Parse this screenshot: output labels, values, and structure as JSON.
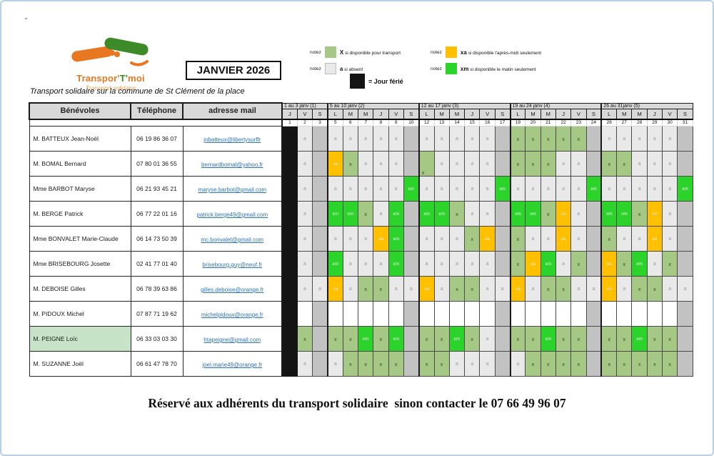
{
  "page": {
    "stray_mark": "„",
    "footer": "Réservé aux adhérents du transport solidaire  sinon contacter le 07 66 49 96 07"
  },
  "logo": {
    "title_part1": "Transpor'",
    "title_part2": "T'",
    "title_part3": "moi",
    "subtitle": "Transport solidaire"
  },
  "header": {
    "month_title": "JANVIER 2026",
    "caption": "Transport solidaire sur la commune de St Clément de la place"
  },
  "legend": {
    "notez": "notez",
    "items": [
      {
        "code": "X",
        "color": "#a6c885",
        "text": "si disponible pour transport"
      },
      {
        "code": "a",
        "color": "#e9e9e9",
        "text": "si absent"
      },
      {
        "code": "xa",
        "color": "#ffc000",
        "text": "si disponible l'après-midi seulement"
      },
      {
        "code": "xm",
        "color": "#2bd32b",
        "text": "si disponible le matin  seulement"
      }
    ],
    "ferie": {
      "color": "#141414",
      "text": "= Jour férié"
    }
  },
  "colors": {
    "available": "#a6c885",
    "absent": "#e9e9e9",
    "afternoon_only": "#ffc000",
    "morning_only": "#2bd32b",
    "holiday": "#141414",
    "saturday_empty": "#c2c2c2",
    "highlighted_name": "#c7e3c7"
  },
  "table": {
    "columns": [
      "Bénévoles",
      "Téléphone",
      "adresse mail"
    ],
    "weeks": [
      {
        "label": "1 au 3 janv (1)",
        "days": [
          "J",
          "V",
          "S"
        ],
        "dates": [
          "1",
          "2",
          "3"
        ]
      },
      {
        "label": "5 au 10 janv (2)",
        "days": [
          "L",
          "M",
          "M",
          "J",
          "V",
          "S"
        ],
        "dates": [
          "5",
          "6",
          "7",
          "8",
          "9",
          "10"
        ]
      },
      {
        "label": "12 au 17 janv (3)",
        "days": [
          "L",
          "M",
          "M",
          "J",
          "V",
          "S"
        ],
        "dates": [
          "12",
          "13",
          "14",
          "15",
          "16",
          "17"
        ]
      },
      {
        "label": "19 au 24 janv (4)",
        "days": [
          "L",
          "M",
          "M",
          "J",
          "V",
          "S"
        ],
        "dates": [
          "19",
          "20",
          "21",
          "22",
          "23",
          "24"
        ]
      },
      {
        "label": "26 au 31janv (5)",
        "days": [
          "L",
          "M",
          "M",
          "J",
          "V",
          "S"
        ],
        "dates": [
          "26",
          "27",
          "28",
          "29",
          "30",
          "31"
        ]
      }
    ],
    "rows": [
      {
        "name": "M. BATTEUX Jean-Noël",
        "phone": "06 19 86 36 07",
        "email": "jnbatteux@libertysurffr",
        "cells": [
          "F",
          "a",
          "S",
          "a",
          "a",
          "a",
          "a",
          "a",
          "S",
          "a",
          "a",
          "a",
          "a",
          "a",
          "S",
          "x",
          "x",
          "x",
          "x",
          "x",
          "S",
          "a",
          "a",
          "a",
          "a",
          "a",
          "S"
        ]
      },
      {
        "name": "M. BOMAL Bernard",
        "phone": "07 80 01 36 55",
        "email": "bernardbomal@yahoo.fr",
        "cells": [
          "F",
          "a",
          "S",
          "xa",
          "x",
          "a",
          "a",
          "a",
          "S",
          "xb",
          "a",
          "a",
          "a",
          "a",
          "S",
          "x",
          "x",
          "x",
          "a",
          "a",
          "S",
          "x",
          "x",
          "a",
          "a",
          "a",
          "S"
        ]
      },
      {
        "name": "Mme BARBOT Maryse",
        "phone": "06 21 93 45 21",
        "email": "maryse.barbot@gmail.com",
        "cells": [
          "F",
          "a",
          "S",
          "a",
          "a",
          "a",
          "a",
          "a",
          "xm",
          "a",
          "a",
          "a",
          "a",
          "a",
          "xm",
          "a",
          "a",
          "a",
          "a",
          "a",
          "xm",
          "a",
          "a",
          "a",
          "a",
          "a",
          "xm"
        ]
      },
      {
        "name": "M. BERGE Patrick",
        "phone": "06 77 22 01 16",
        "email": "patrick.berge49@gmail.com",
        "cells": [
          "F",
          "a",
          "S",
          "xm",
          "xm",
          "x",
          "a",
          "xm",
          "S",
          "xm",
          "xm",
          "x",
          "a",
          "a",
          "S",
          "xm",
          "xm",
          "x",
          "xa",
          "a",
          "S",
          "xm",
          "xm",
          "x",
          "xa",
          "a",
          "S"
        ]
      },
      {
        "name": "Mme BONVALET Marie-Claude",
        "phone": "06 14 73 50 39",
        "email": "mc.bonvalet@gmail.com",
        "cells": [
          "F",
          "a",
          "S",
          "a",
          "a",
          "a",
          "xa",
          "xm",
          "S",
          "a",
          "a",
          "a",
          "x",
          "xa",
          "S",
          "x",
          "a",
          "a",
          "xa",
          "a",
          "S",
          "x",
          "a",
          "a",
          "xa",
          "a",
          "S"
        ]
      },
      {
        "name": "Mme BRISEBOURG Josette",
        "phone": "02 41 77 01 40",
        "email": "brisebourg.guy@neuf.fr",
        "cells": [
          "F",
          "a",
          "S",
          "xm",
          "a",
          "a",
          "a",
          "xm",
          "S",
          "a",
          "a",
          "a",
          "a",
          "a",
          "S",
          "x",
          "xa",
          "xm",
          "a",
          "x",
          "S",
          "xa",
          "x",
          "xm",
          "a",
          "x",
          "S"
        ]
      },
      {
        "name": "M. DEBOISE Gilles",
        "phone": "06 78 39 63 86",
        "email": "gilles.deboise@orange.fr",
        "cells": [
          "F",
          "a",
          "a",
          "xa",
          "a",
          "x",
          "x",
          "a",
          "a",
          "xa",
          "a",
          "x",
          "x",
          "a",
          "a",
          "xa",
          "a",
          "x",
          "x",
          "a",
          "a",
          "xa",
          "a",
          "x",
          "x",
          "a",
          "a"
        ]
      },
      {
        "name": "M. PIDOUX Michel",
        "phone": "07 87 71 19 62",
        "email": "michelpidoux@orange.fr",
        "cells": [
          "F",
          "",
          "S",
          "",
          "",
          "",
          "",
          "",
          "S",
          "",
          "",
          "",
          "",
          "",
          "S",
          "",
          "",
          "",
          "",
          "",
          "S",
          "",
          "",
          "",
          "",
          "",
          "S"
        ]
      },
      {
        "name": "M. PEIGNE Loïc",
        "phone": "06 33 03 03 30",
        "email": "htapeigne@gmail.com",
        "highlight": true,
        "cells": [
          "F",
          "x",
          "S",
          "x",
          "x",
          "xm",
          "x",
          "xm",
          "S",
          "x",
          "x",
          "xm",
          "x",
          "a",
          "S",
          "x",
          "x",
          "xm",
          "x",
          "x",
          "S",
          "x",
          "x",
          "xm",
          "x",
          "x",
          "S"
        ]
      },
      {
        "name": "M. SUZANNE Joël",
        "phone": "06 61 47 78 70",
        "email": "joel.marie49@orange.fr",
        "cells": [
          "F",
          "a",
          "S",
          "a",
          "x",
          "x",
          "x",
          "x",
          "S",
          "x",
          "x",
          "a",
          "a",
          "a",
          "S",
          "a",
          "x",
          "x",
          "x",
          "x",
          "S",
          "x",
          "x",
          "x",
          "x",
          "x",
          "S"
        ]
      }
    ]
  }
}
